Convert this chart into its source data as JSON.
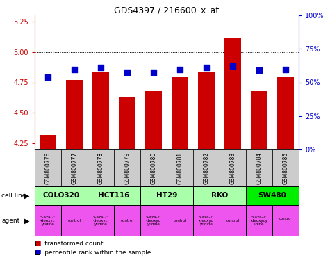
{
  "title": "GDS4397 / 216600_x_at",
  "samples": [
    "GSM800776",
    "GSM800777",
    "GSM800778",
    "GSM800779",
    "GSM800780",
    "GSM800781",
    "GSM800782",
    "GSM800783",
    "GSM800784",
    "GSM800785"
  ],
  "red_values": [
    4.32,
    4.77,
    4.84,
    4.63,
    4.68,
    4.79,
    4.84,
    5.12,
    4.68,
    4.79
  ],
  "blue_values": [
    0.54,
    0.595,
    0.61,
    0.575,
    0.575,
    0.595,
    0.61,
    0.62,
    0.59,
    0.595
  ],
  "ylim_left": [
    4.2,
    5.3
  ],
  "ylim_right": [
    0,
    1.0
  ],
  "yticks_left": [
    4.25,
    4.5,
    4.75,
    5.0,
    5.25
  ],
  "yticks_right": [
    0,
    0.25,
    0.5,
    0.75,
    1.0
  ],
  "ytick_labels_right": [
    "0%",
    "25%",
    "50%",
    "75%",
    "100%"
  ],
  "cell_lines": [
    {
      "label": "COLO320",
      "start": 0,
      "end": 2,
      "color": "#aaffaa"
    },
    {
      "label": "HCT116",
      "start": 2,
      "end": 4,
      "color": "#aaffaa"
    },
    {
      "label": "HT29",
      "start": 4,
      "end": 6,
      "color": "#aaffaa"
    },
    {
      "label": "RKO",
      "start": 6,
      "end": 8,
      "color": "#aaffaa"
    },
    {
      "label": "SW480",
      "start": 8,
      "end": 10,
      "color": "#00ee00"
    }
  ],
  "agents": [
    {
      "label": "5-aza-2'\n-deoxyc\nytidine",
      "start": 0,
      "end": 1,
      "color": "#ee55ee"
    },
    {
      "label": "control",
      "start": 1,
      "end": 2,
      "color": "#ee55ee"
    },
    {
      "label": "5-aza-2'\n-deoxyc\nytidine",
      "start": 2,
      "end": 3,
      "color": "#ee55ee"
    },
    {
      "label": "control",
      "start": 3,
      "end": 4,
      "color": "#ee55ee"
    },
    {
      "label": "5-aza-2'\n-deoxyc\nytidine",
      "start": 4,
      "end": 5,
      "color": "#ee55ee"
    },
    {
      "label": "control",
      "start": 5,
      "end": 6,
      "color": "#ee55ee"
    },
    {
      "label": "5-aza-2'\n-deoxyc\nytidine",
      "start": 6,
      "end": 7,
      "color": "#ee55ee"
    },
    {
      "label": "control",
      "start": 7,
      "end": 8,
      "color": "#ee55ee"
    },
    {
      "label": "5-aza-2'\n-deoxycy\ntidine",
      "start": 8,
      "end": 9,
      "color": "#ee55ee"
    },
    {
      "label": "contro\nl",
      "start": 9,
      "end": 10,
      "color": "#ee55ee"
    }
  ],
  "bar_color": "#cc0000",
  "dot_color": "#0000cc",
  "background_color": "#ffffff",
  "bar_width": 0.65,
  "dot_size": 40,
  "sample_bg_color": "#cccccc",
  "grid_color": "black",
  "tick_color_left": "#cc0000",
  "tick_color_right": "#0000cc"
}
